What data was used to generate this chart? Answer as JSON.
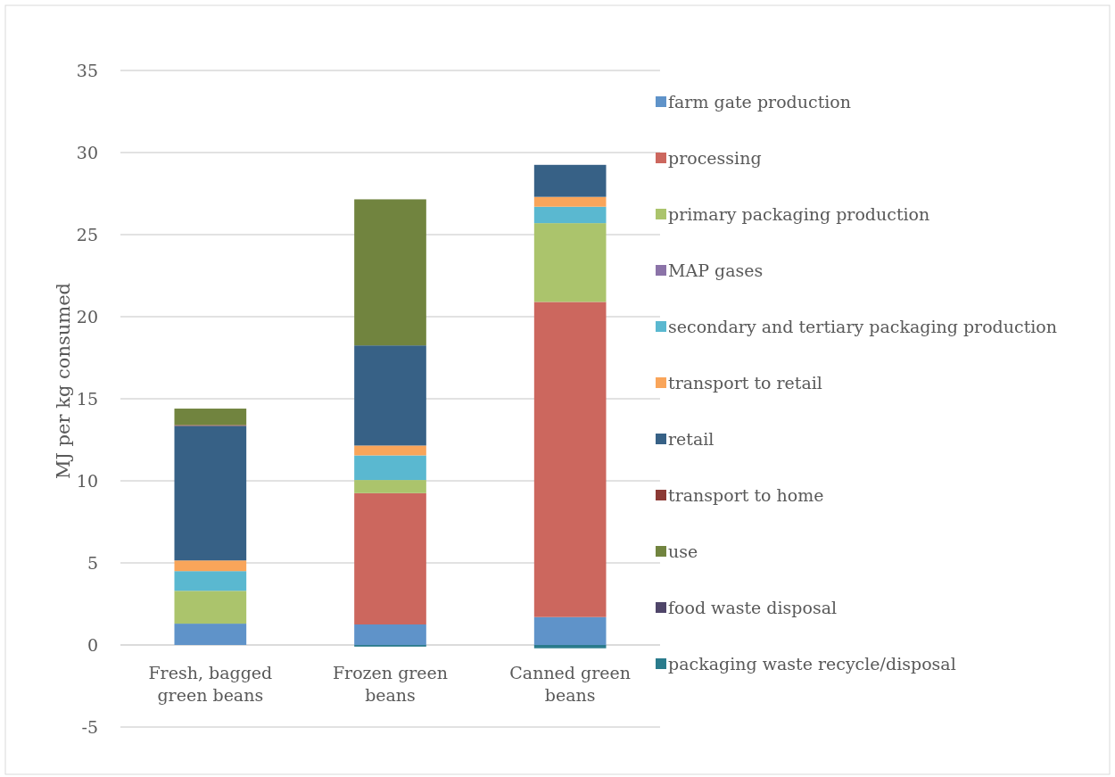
{
  "chart_data": {
    "type": "bar",
    "stacked": true,
    "ylabel": "MJ per kg consumed",
    "categories": [
      "Fresh, bagged green beans",
      "Frozen green beans",
      "Canned green beans"
    ],
    "series": [
      {
        "name": "farm gate production",
        "color": "#5f93c9",
        "values": [
          1.3,
          1.25,
          1.7
        ]
      },
      {
        "name": "processing",
        "color": "#cc675e",
        "values": [
          0,
          8.0,
          19.2
        ]
      },
      {
        "name": "primary packaging production",
        "color": "#abc46c",
        "values": [
          2.0,
          0.8,
          4.8
        ]
      },
      {
        "name": "MAP gases",
        "color": "#8b73a8",
        "values": [
          0,
          0,
          0
        ]
      },
      {
        "name": "secondary and tertiary packaging production",
        "color": "#5ab8d0",
        "values": [
          1.2,
          1.5,
          1.0
        ]
      },
      {
        "name": "transport to retail",
        "color": "#f9a55a",
        "values": [
          0.65,
          0.6,
          0.6
        ]
      },
      {
        "name": "retail",
        "color": "#376186",
        "values": [
          8.2,
          6.1,
          1.95
        ]
      },
      {
        "name": "transport to home",
        "color": "#8c3a35",
        "values": [
          0.05,
          0,
          0
        ]
      },
      {
        "name": "use",
        "color": "#71843f",
        "values": [
          1.0,
          8.9,
          0
        ]
      },
      {
        "name": "food waste disposal",
        "color": "#4f4569",
        "values": [
          0,
          0,
          0
        ]
      },
      {
        "name": "packaging waste recycle/disposal",
        "color": "#2a7b8c",
        "values": [
          0,
          -0.1,
          -0.2
        ]
      }
    ],
    "ylim": [
      -5,
      35
    ],
    "yticks": [
      -5,
      0,
      5,
      10,
      15,
      20,
      25,
      30,
      35
    ],
    "grid": "y",
    "legend": "right"
  }
}
